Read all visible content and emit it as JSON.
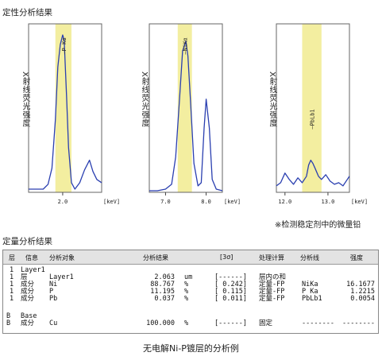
{
  "qualitative_title": "定性分析结果",
  "quantitative_title": "定量分析结果",
  "caption": "无电解Ni-P镀层的分析例",
  "note": "※检测稳定剂中的微量铅",
  "chart_data": [
    {
      "type": "line",
      "ylabel": "X射线荧光强度",
      "xlabel": "[keV]",
      "xlim": [
        1.3,
        2.8
      ],
      "ticks": [
        {
          "value": 2.0,
          "label": "2.0"
        }
      ],
      "peak_label": "—P Kα",
      "highlight": [
        1.85,
        2.18
      ],
      "series": [
        {
          "x": [
            1.3,
            1.45,
            1.6,
            1.7,
            1.78,
            1.85,
            1.9,
            1.95,
            2.0,
            2.03,
            2.08,
            2.12,
            2.18,
            2.25,
            2.35,
            2.45,
            2.55,
            2.62,
            2.7,
            2.8
          ],
          "y": [
            2,
            2,
            2,
            5,
            15,
            45,
            78,
            92,
            98,
            95,
            60,
            28,
            6,
            2,
            6,
            14,
            20,
            13,
            8,
            6
          ]
        }
      ]
    },
    {
      "type": "line",
      "ylabel": "X射线荧光强度",
      "xlabel": "[keV]",
      "xlim": [
        6.6,
        8.4
      ],
      "ticks": [
        {
          "value": 7.0,
          "label": "7.0"
        },
        {
          "value": 8.0,
          "label": "8.0"
        }
      ],
      "peak_label": "—NiKα",
      "highlight": [
        7.3,
        7.65
      ],
      "series": [
        {
          "x": [
            6.6,
            6.8,
            7.0,
            7.15,
            7.25,
            7.35,
            7.42,
            7.5,
            7.55,
            7.62,
            7.7,
            7.8,
            7.88,
            7.95,
            8.0,
            8.08,
            8.15,
            8.25,
            8.4
          ],
          "y": [
            1,
            1,
            2,
            5,
            22,
            60,
            88,
            94,
            85,
            55,
            18,
            4,
            6,
            40,
            58,
            40,
            8,
            2,
            1
          ]
        }
      ]
    },
    {
      "type": "line",
      "ylabel": "X射线荧光强度",
      "xlabel": "[keV]",
      "xlim": [
        11.8,
        13.5
      ],
      "ticks": [
        {
          "value": 12.0,
          "label": "12.0"
        },
        {
          "value": 13.0,
          "label": "13.0"
        }
      ],
      "peak_label": "—PbLb1",
      "highlight": [
        12.4,
        12.85
      ],
      "series": [
        {
          "x": [
            11.8,
            11.9,
            12.0,
            12.1,
            12.2,
            12.3,
            12.4,
            12.5,
            12.55,
            12.6,
            12.65,
            12.7,
            12.78,
            12.85,
            12.95,
            13.05,
            13.15,
            13.25,
            13.35,
            13.45,
            13.5
          ],
          "y": [
            4,
            6,
            12,
            8,
            5,
            9,
            6,
            10,
            17,
            20,
            18,
            15,
            10,
            8,
            11,
            7,
            5,
            6,
            4,
            8,
            10
          ]
        }
      ]
    }
  ],
  "table": {
    "headers": [
      "层",
      "信息",
      "分析对象",
      "分析结果",
      "[3σ]",
      "处理计算",
      "分析线",
      "强度"
    ],
    "rows": [
      {
        "layer": "1",
        "info": "Layer1",
        "target": "",
        "result": "",
        "unit": "",
        "sigma": "",
        "calc": "",
        "line": "",
        "intensity": ""
      },
      {
        "layer": "1",
        "info": "层",
        "target": "Layer1",
        "result": "2.063",
        "unit": "um",
        "sigma": "[------]",
        "calc": "层内の和",
        "line": "",
        "intensity": ""
      },
      {
        "layer": "1",
        "info": "成分",
        "target": "Ni",
        "result": "88.767",
        "unit": "%",
        "sigma": "[ 0.242]",
        "calc": "定量-FP",
        "line": "NiKa",
        "intensity": "16.1677"
      },
      {
        "layer": "1",
        "info": "成分",
        "target": "P",
        "result": "11.195",
        "unit": "%",
        "sigma": "[ 0.115]",
        "calc": "定量-FP",
        "line": "P Ka",
        "intensity": "1.2215"
      },
      {
        "layer": "1",
        "info": "成分",
        "target": "Pb",
        "result": "0.037",
        "unit": "%",
        "sigma": "[ 0.011]",
        "calc": "定量-FP",
        "line": "PbLb1",
        "intensity": "0.0054"
      },
      {
        "layer": "B",
        "info": "Base",
        "target": "",
        "result": "",
        "unit": "",
        "sigma": "",
        "calc": "",
        "line": "",
        "intensity": ""
      },
      {
        "layer": "B",
        "info": "成分",
        "target": "Cu",
        "result": "100.000",
        "unit": "%",
        "sigma": "[------]",
        "calc": "固定",
        "line": "--------",
        "intensity": "--------"
      }
    ]
  }
}
